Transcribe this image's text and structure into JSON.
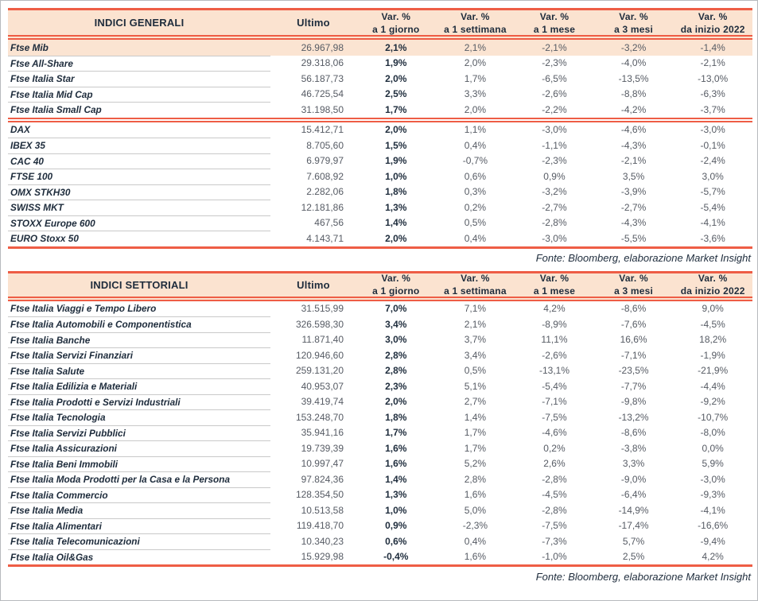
{
  "colors": {
    "accent_salmon": "#ee5d45",
    "header_peach": "#fbe3d0",
    "highlight_peach": "#fbe4d2",
    "text_navy": "#1e2c3c",
    "text_gray": "#565b64",
    "separator_gray": "#c9c9c9"
  },
  "tables": [
    {
      "title": "INDICI GENERALI",
      "ultimo_label": "Ultimo",
      "var_label": "Var. %",
      "periods": [
        "a 1 giorno",
        "a 1 settimana",
        "a 1 mese",
        "a 3 mesi",
        "da inizio 2022"
      ],
      "source": "Fonte: Bloomberg, elaborazione Market Insight",
      "groups": [
        {
          "rows": [
            {
              "name": "Ftse Mib",
              "ultimo": "26.967,98",
              "vals": [
                "2,1%",
                "2,1%",
                "-2,1%",
                "-3,2%",
                "-1,4%"
              ],
              "highlight": true
            },
            {
              "name": "Ftse All-Share",
              "ultimo": "29.318,06",
              "vals": [
                "1,9%",
                "2,0%",
                "-2,3%",
                "-4,0%",
                "-2,1%"
              ]
            },
            {
              "name": "Ftse Italia Star",
              "ultimo": "56.187,73",
              "vals": [
                "2,0%",
                "1,7%",
                "-6,5%",
                "-13,5%",
                "-13,0%"
              ]
            },
            {
              "name": "Ftse Italia Mid Cap",
              "ultimo": "46.725,54",
              "vals": [
                "2,5%",
                "3,3%",
                "-2,6%",
                "-8,8%",
                "-6,3%"
              ]
            },
            {
              "name": "Ftse Italia Small Cap",
              "ultimo": "31.198,50",
              "vals": [
                "1,7%",
                "2,0%",
                "-2,2%",
                "-4,2%",
                "-3,7%"
              ]
            }
          ]
        },
        {
          "rows": [
            {
              "name": "DAX",
              "ultimo": "15.412,71",
              "vals": [
                "2,0%",
                "1,1%",
                "-3,0%",
                "-4,6%",
                "-3,0%"
              ]
            },
            {
              "name": "IBEX 35",
              "ultimo": "8.705,60",
              "vals": [
                "1,5%",
                "0,4%",
                "-1,1%",
                "-4,3%",
                "-0,1%"
              ]
            },
            {
              "name": "CAC 40",
              "ultimo": "6.979,97",
              "vals": [
                "1,9%",
                "-0,7%",
                "-2,3%",
                "-2,1%",
                "-2,4%"
              ]
            },
            {
              "name": "FTSE 100",
              "ultimo": "7.608,92",
              "vals": [
                "1,0%",
                "0,6%",
                "0,9%",
                "3,5%",
                "3,0%"
              ]
            },
            {
              "name": "OMX STKH30",
              "ultimo": "2.282,06",
              "vals": [
                "1,8%",
                "0,3%",
                "-3,2%",
                "-3,9%",
                "-5,7%"
              ]
            },
            {
              "name": "SWISS MKT",
              "ultimo": "12.181,86",
              "vals": [
                "1,3%",
                "0,2%",
                "-2,7%",
                "-2,7%",
                "-5,4%"
              ]
            },
            {
              "name": "STOXX Europe 600",
              "ultimo": "467,56",
              "vals": [
                "1,4%",
                "0,5%",
                "-2,8%",
                "-4,3%",
                "-4,1%"
              ]
            },
            {
              "name": "EURO Stoxx 50",
              "ultimo": "4.143,71",
              "vals": [
                "2,0%",
                "0,4%",
                "-3,0%",
                "-5,5%",
                "-3,6%"
              ]
            }
          ]
        }
      ]
    },
    {
      "title": "INDICI SETTORIALI",
      "ultimo_label": "Ultimo",
      "var_label": "Var. %",
      "periods": [
        "a 1 giorno",
        "a 1 settimana",
        "a 1 mese",
        "a 3 mesi",
        "da inizio 2022"
      ],
      "source": "Fonte: Bloomberg, elaborazione Market Insight",
      "groups": [
        {
          "rows": [
            {
              "name": "Ftse Italia Viaggi e Tempo Libero",
              "ultimo": "31.515,99",
              "vals": [
                "7,0%",
                "7,1%",
                "4,2%",
                "-8,6%",
                "9,0%"
              ]
            },
            {
              "name": "Ftse Italia Automobili e Componentistica",
              "ultimo": "326.598,30",
              "vals": [
                "3,4%",
                "2,1%",
                "-8,9%",
                "-7,6%",
                "-4,5%"
              ]
            },
            {
              "name": "Ftse Italia Banche",
              "ultimo": "11.871,40",
              "vals": [
                "3,0%",
                "3,7%",
                "11,1%",
                "16,6%",
                "18,2%"
              ]
            },
            {
              "name": "Ftse Italia Servizi Finanziari",
              "ultimo": "120.946,60",
              "vals": [
                "2,8%",
                "3,4%",
                "-2,6%",
                "-7,1%",
                "-1,9%"
              ]
            },
            {
              "name": "Ftse Italia Salute",
              "ultimo": "259.131,20",
              "vals": [
                "2,8%",
                "0,5%",
                "-13,1%",
                "-23,5%",
                "-21,9%"
              ]
            },
            {
              "name": "Ftse Italia Edilizia e Materiali",
              "ultimo": "40.953,07",
              "vals": [
                "2,3%",
                "5,1%",
                "-5,4%",
                "-7,7%",
                "-4,4%"
              ]
            },
            {
              "name": "Ftse Italia Prodotti e Servizi Industriali",
              "ultimo": "39.419,74",
              "vals": [
                "2,0%",
                "2,7%",
                "-7,1%",
                "-9,8%",
                "-9,2%"
              ]
            },
            {
              "name": "Ftse Italia Tecnologia",
              "ultimo": "153.248,70",
              "vals": [
                "1,8%",
                "1,4%",
                "-7,5%",
                "-13,2%",
                "-10,7%"
              ]
            },
            {
              "name": "Ftse Italia Servizi Pubblici",
              "ultimo": "35.941,16",
              "vals": [
                "1,7%",
                "1,7%",
                "-4,6%",
                "-8,6%",
                "-8,0%"
              ]
            },
            {
              "name": "Ftse Italia Assicurazioni",
              "ultimo": "19.739,39",
              "vals": [
                "1,6%",
                "1,7%",
                "0,2%",
                "-3,8%",
                "0,0%"
              ]
            },
            {
              "name": "Ftse Italia Beni Immobili",
              "ultimo": "10.997,47",
              "vals": [
                "1,6%",
                "5,2%",
                "2,6%",
                "3,3%",
                "5,9%"
              ]
            },
            {
              "name": "Ftse Italia Moda Prodotti per la Casa e la Persona",
              "ultimo": "97.824,36",
              "vals": [
                "1,4%",
                "2,8%",
                "-2,8%",
                "-9,0%",
                "-3,0%"
              ]
            },
            {
              "name": "Ftse Italia Commercio",
              "ultimo": "128.354,50",
              "vals": [
                "1,3%",
                "1,6%",
                "-4,5%",
                "-6,4%",
                "-9,3%"
              ]
            },
            {
              "name": "Ftse Italia Media",
              "ultimo": "10.513,58",
              "vals": [
                "1,0%",
                "5,0%",
                "-2,8%",
                "-14,9%",
                "-4,1%"
              ]
            },
            {
              "name": "Ftse Italia Alimentari",
              "ultimo": "119.418,70",
              "vals": [
                "0,9%",
                "-2,3%",
                "-7,5%",
                "-17,4%",
                "-16,6%"
              ]
            },
            {
              "name": "Ftse Italia Telecomunicazioni",
              "ultimo": "10.340,23",
              "vals": [
                "0,6%",
                "0,4%",
                "-7,3%",
                "5,7%",
                "-9,4%"
              ]
            },
            {
              "name": "Ftse Italia Oil&Gas",
              "ultimo": "15.929,98",
              "vals": [
                "-0,4%",
                "1,6%",
                "-1,0%",
                "2,5%",
                "4,2%"
              ]
            }
          ]
        }
      ]
    }
  ]
}
